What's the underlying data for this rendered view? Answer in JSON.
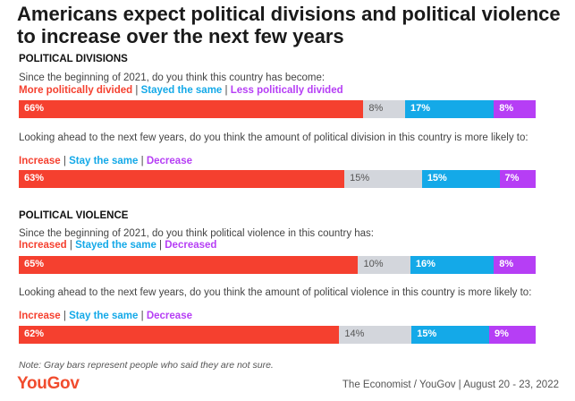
{
  "title": "Americans expect political divisions and political violence to increase over the next few years",
  "colors": {
    "red": "#f5402f",
    "gray": "#d3d6dc",
    "blue": "#14a9e8",
    "purple": "#b63ef5"
  },
  "sections": [
    {
      "heading": "POLITICAL DIVISIONS"
    },
    {
      "heading": "POLITICAL VIOLENCE"
    }
  ],
  "chart_data": [
    {
      "type": "bar",
      "stacked": true,
      "horizontal": true,
      "question": "Since the beginning of 2021, do you think this country has become:",
      "legend": [
        "More politically divided",
        "Stayed the same",
        "Less politically divided"
      ],
      "series": [
        {
          "name": "More politically divided",
          "value": 66,
          "label": "66%"
        },
        {
          "name": "Not sure",
          "value": 8,
          "label": "8%"
        },
        {
          "name": "Stayed the same",
          "value": 17,
          "label": "17%"
        },
        {
          "name": "Less politically divided",
          "value": 8,
          "label": "8%"
        }
      ]
    },
    {
      "type": "bar",
      "stacked": true,
      "horizontal": true,
      "question": "Looking ahead to the next few years, do you think the amount of political division in this country is more likely to:",
      "legend": [
        "Increase",
        "Stay the same",
        "Decrease"
      ],
      "series": [
        {
          "name": "Increase",
          "value": 63,
          "label": "63%"
        },
        {
          "name": "Not sure",
          "value": 15,
          "label": "15%"
        },
        {
          "name": "Stay the same",
          "value": 15,
          "label": "15%"
        },
        {
          "name": "Decrease",
          "value": 7,
          "label": "7%"
        }
      ]
    },
    {
      "type": "bar",
      "stacked": true,
      "horizontal": true,
      "question": "Since the beginning of 2021, do you think political violence in this country has:",
      "legend": [
        "Increased",
        "Stayed the same",
        "Decreased"
      ],
      "series": [
        {
          "name": "Increased",
          "value": 65,
          "label": "65%"
        },
        {
          "name": "Not sure",
          "value": 10,
          "label": "10%"
        },
        {
          "name": "Stayed the same",
          "value": 16,
          "label": "16%"
        },
        {
          "name": "Decreased",
          "value": 8,
          "label": "8%"
        }
      ]
    },
    {
      "type": "bar",
      "stacked": true,
      "horizontal": true,
      "question": "Looking ahead to the next few years, do you think the amount of political violence in this country is more likely to:",
      "legend": [
        "Increase",
        "Stay the same",
        "Decrease"
      ],
      "series": [
        {
          "name": "Increase",
          "value": 62,
          "label": "62%"
        },
        {
          "name": "Not sure",
          "value": 14,
          "label": "14%"
        },
        {
          "name": "Stay the same",
          "value": 15,
          "label": "15%"
        },
        {
          "name": "Decrease",
          "value": 9,
          "label": "9%"
        }
      ]
    }
  ],
  "note": "Note: Gray bars represent people who said they are not sure.",
  "logo": "YouGov",
  "source": "The Economist / YouGov | August 20 - 23, 2022"
}
